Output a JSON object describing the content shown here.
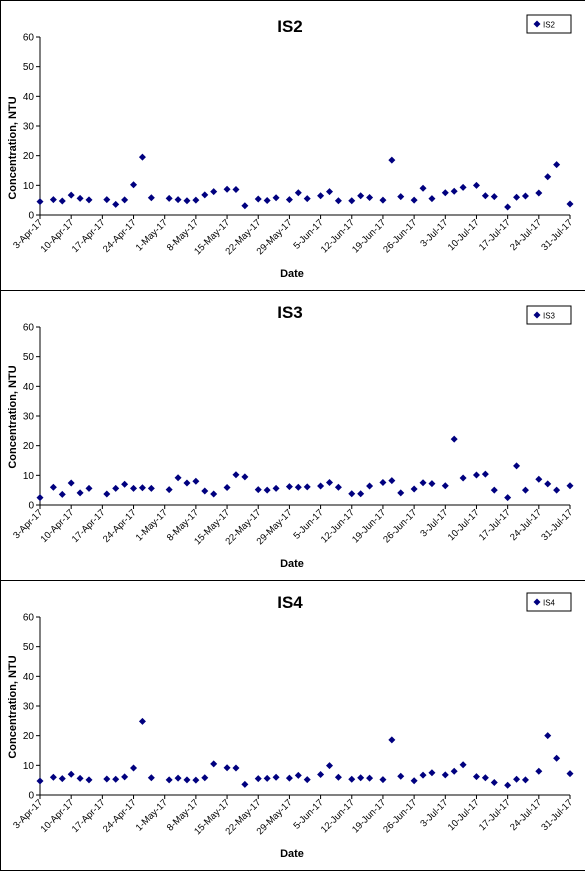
{
  "colors": {
    "series": "#00007F",
    "axis": "#000000",
    "background": "#ffffff"
  },
  "chart_data": [
    {
      "type": "scatter",
      "title": "IS2",
      "xlabel": "Date",
      "ylabel": "Concentration, NTU",
      "ylim": [
        0,
        60
      ],
      "yticks": [
        "0",
        "10",
        "20",
        "30",
        "40",
        "50",
        "60"
      ],
      "xlim": [
        "2017-04-03",
        "2017-07-31"
      ],
      "xticks": [
        "3-Apr-17",
        "10-Apr-17",
        "17-Apr-17",
        "24-Apr-17",
        "1-May-17",
        "8-May-17",
        "15-May-17",
        "22-May-17",
        "29-May-17",
        "5-Jun-17",
        "12-Jun-17",
        "19-Jun-17",
        "26-Jun-17",
        "3-Jul-17",
        "10-Jul-17",
        "17-Jul-17",
        "24-Jul-17",
        "31-Jul-17"
      ],
      "grid": false,
      "legend_position": "top-right",
      "series": [
        {
          "name": "IS2",
          "points": [
            [
              "2017-04-03",
              4.5
            ],
            [
              "2017-04-06",
              5.2
            ],
            [
              "2017-04-08",
              4.7
            ],
            [
              "2017-04-10",
              6.7
            ],
            [
              "2017-04-12",
              5.6
            ],
            [
              "2017-04-14",
              5.1
            ],
            [
              "2017-04-18",
              5.2
            ],
            [
              "2017-04-20",
              3.6
            ],
            [
              "2017-04-22",
              5.1
            ],
            [
              "2017-04-24",
              10.2
            ],
            [
              "2017-04-26",
              19.5
            ],
            [
              "2017-04-28",
              5.8
            ],
            [
              "2017-05-02",
              5.6
            ],
            [
              "2017-05-04",
              5.2
            ],
            [
              "2017-05-06",
              4.8
            ],
            [
              "2017-05-08",
              5.0
            ],
            [
              "2017-05-10",
              6.8
            ],
            [
              "2017-05-12",
              7.9
            ],
            [
              "2017-05-15",
              8.7
            ],
            [
              "2017-05-17",
              8.6
            ],
            [
              "2017-05-19",
              3.1
            ],
            [
              "2017-05-22",
              5.4
            ],
            [
              "2017-05-24",
              4.9
            ],
            [
              "2017-05-26",
              5.8
            ],
            [
              "2017-05-29",
              5.2
            ],
            [
              "2017-05-31",
              7.5
            ],
            [
              "2017-06-02",
              5.5
            ],
            [
              "2017-06-05",
              6.5
            ],
            [
              "2017-06-07",
              7.9
            ],
            [
              "2017-06-09",
              4.8
            ],
            [
              "2017-06-12",
              4.8
            ],
            [
              "2017-06-14",
              6.5
            ],
            [
              "2017-06-16",
              5.9
            ],
            [
              "2017-06-19",
              5.0
            ],
            [
              "2017-06-21",
              18.5
            ],
            [
              "2017-06-23",
              6.2
            ],
            [
              "2017-06-26",
              5.0
            ],
            [
              "2017-06-28",
              9.0
            ],
            [
              "2017-06-30",
              5.5
            ],
            [
              "2017-07-03",
              7.5
            ],
            [
              "2017-07-05",
              8.0
            ],
            [
              "2017-07-07",
              9.3
            ],
            [
              "2017-07-10",
              10.0
            ],
            [
              "2017-07-12",
              6.5
            ],
            [
              "2017-07-14",
              6.2
            ],
            [
              "2017-07-17",
              2.7
            ],
            [
              "2017-07-19",
              6.0
            ],
            [
              "2017-07-21",
              6.4
            ],
            [
              "2017-07-24",
              7.4
            ],
            [
              "2017-07-26",
              12.9
            ],
            [
              "2017-07-28",
              17.0
            ],
            [
              "2017-07-31",
              3.7
            ]
          ]
        }
      ]
    },
    {
      "type": "scatter",
      "title": "IS3",
      "xlabel": "Date",
      "ylabel": "Concentration, NTU",
      "ylim": [
        0,
        60
      ],
      "yticks": [
        "0",
        "10",
        "20",
        "30",
        "40",
        "50",
        "60"
      ],
      "xlim": [
        "2017-04-03",
        "2017-07-31"
      ],
      "xticks": [
        "3-Apr-17",
        "10-Apr-17",
        "17-Apr-17",
        "24-Apr-17",
        "1-May-17",
        "8-May-17",
        "15-May-17",
        "22-May-17",
        "29-May-17",
        "5-Jun-17",
        "12-Jun-17",
        "19-Jun-17",
        "26-Jun-17",
        "3-Jul-17",
        "10-Jul-17",
        "17-Jul-17",
        "24-Jul-17",
        "31-Jul-17"
      ],
      "grid": false,
      "legend_position": "top-right",
      "series": [
        {
          "name": "IS3",
          "points": [
            [
              "2017-04-03",
              2.5
            ],
            [
              "2017-04-06",
              6.0
            ],
            [
              "2017-04-08",
              3.6
            ],
            [
              "2017-04-10",
              7.4
            ],
            [
              "2017-04-12",
              4.1
            ],
            [
              "2017-04-14",
              5.6
            ],
            [
              "2017-04-18",
              3.7
            ],
            [
              "2017-04-20",
              5.6
            ],
            [
              "2017-04-22",
              7.0
            ],
            [
              "2017-04-24",
              5.6
            ],
            [
              "2017-04-26",
              5.8
            ],
            [
              "2017-04-28",
              5.6
            ],
            [
              "2017-05-02",
              5.2
            ],
            [
              "2017-05-04",
              9.2
            ],
            [
              "2017-05-06",
              7.4
            ],
            [
              "2017-05-08",
              8.0
            ],
            [
              "2017-05-10",
              4.7
            ],
            [
              "2017-05-12",
              3.7
            ],
            [
              "2017-05-15",
              5.9
            ],
            [
              "2017-05-17",
              10.2
            ],
            [
              "2017-05-19",
              9.5
            ],
            [
              "2017-05-22",
              5.2
            ],
            [
              "2017-05-24",
              5.0
            ],
            [
              "2017-05-26",
              5.6
            ],
            [
              "2017-05-29",
              6.2
            ],
            [
              "2017-05-31",
              6.0
            ],
            [
              "2017-06-02",
              6.1
            ],
            [
              "2017-06-05",
              6.4
            ],
            [
              "2017-06-07",
              7.6
            ],
            [
              "2017-06-09",
              6.0
            ],
            [
              "2017-06-12",
              3.8
            ],
            [
              "2017-06-14",
              3.8
            ],
            [
              "2017-06-16",
              6.4
            ],
            [
              "2017-06-19",
              7.6
            ],
            [
              "2017-06-21",
              8.2
            ],
            [
              "2017-06-23",
              4.1
            ],
            [
              "2017-06-26",
              5.4
            ],
            [
              "2017-06-28",
              7.5
            ],
            [
              "2017-06-30",
              7.2
            ],
            [
              "2017-07-03",
              6.5
            ],
            [
              "2017-07-05",
              22.2
            ],
            [
              "2017-07-07",
              9.1
            ],
            [
              "2017-07-10",
              10.1
            ],
            [
              "2017-07-12",
              10.4
            ],
            [
              "2017-07-14",
              5.0
            ],
            [
              "2017-07-17",
              2.5
            ],
            [
              "2017-07-19",
              13.2
            ],
            [
              "2017-07-21",
              5.0
            ],
            [
              "2017-07-24",
              8.7
            ],
            [
              "2017-07-26",
              7.1
            ],
            [
              "2017-07-28",
              5.0
            ],
            [
              "2017-07-31",
              6.5
            ]
          ]
        }
      ]
    },
    {
      "type": "scatter",
      "title": "IS4",
      "xlabel": "Date",
      "ylabel": "Concentration, NTU",
      "ylim": [
        0,
        60
      ],
      "yticks": [
        "0",
        "10",
        "20",
        "30",
        "40",
        "50",
        "60"
      ],
      "xlim": [
        "2017-04-03",
        "2017-07-31"
      ],
      "xticks": [
        "3-Apr-17",
        "10-Apr-17",
        "17-Apr-17",
        "24-Apr-17",
        "1-May-17",
        "8-May-17",
        "15-May-17",
        "22-May-17",
        "29-May-17",
        "5-Jun-17",
        "12-Jun-17",
        "19-Jun-17",
        "26-Jun-17",
        "3-Jul-17",
        "10-Jul-17",
        "17-Jul-17",
        "24-Jul-17",
        "31-Jul-17"
      ],
      "grid": false,
      "legend_position": "top-right",
      "series": [
        {
          "name": "IS4",
          "points": [
            [
              "2017-04-03",
              4.7
            ],
            [
              "2017-04-06",
              6.0
            ],
            [
              "2017-04-08",
              5.5
            ],
            [
              "2017-04-10",
              7.0
            ],
            [
              "2017-04-12",
              5.6
            ],
            [
              "2017-04-14",
              5.1
            ],
            [
              "2017-04-18",
              5.4
            ],
            [
              "2017-04-20",
              5.3
            ],
            [
              "2017-04-22",
              6.1
            ],
            [
              "2017-04-24",
              9.1
            ],
            [
              "2017-04-26",
              24.8
            ],
            [
              "2017-04-28",
              5.8
            ],
            [
              "2017-05-02",
              5.1
            ],
            [
              "2017-05-04",
              5.7
            ],
            [
              "2017-05-06",
              5.1
            ],
            [
              "2017-05-08",
              5.0
            ],
            [
              "2017-05-10",
              5.8
            ],
            [
              "2017-05-12",
              10.5
            ],
            [
              "2017-05-15",
              9.2
            ],
            [
              "2017-05-17",
              9.1
            ],
            [
              "2017-05-19",
              3.6
            ],
            [
              "2017-05-22",
              5.5
            ],
            [
              "2017-05-24",
              5.6
            ],
            [
              "2017-05-26",
              6.0
            ],
            [
              "2017-05-29",
              5.7
            ],
            [
              "2017-05-31",
              6.6
            ],
            [
              "2017-06-02",
              5.2
            ],
            [
              "2017-06-05",
              6.9
            ],
            [
              "2017-06-07",
              9.9
            ],
            [
              "2017-06-09",
              6.0
            ],
            [
              "2017-06-12",
              5.3
            ],
            [
              "2017-06-14",
              5.8
            ],
            [
              "2017-06-16",
              5.7
            ],
            [
              "2017-06-19",
              5.2
            ],
            [
              "2017-06-21",
              18.6
            ],
            [
              "2017-06-23",
              6.3
            ],
            [
              "2017-06-26",
              4.8
            ],
            [
              "2017-06-28",
              6.7
            ],
            [
              "2017-06-30",
              7.5
            ],
            [
              "2017-07-03",
              6.8
            ],
            [
              "2017-07-05",
              8.0
            ],
            [
              "2017-07-07",
              10.2
            ],
            [
              "2017-07-10",
              6.2
            ],
            [
              "2017-07-12",
              5.8
            ],
            [
              "2017-07-14",
              4.2
            ],
            [
              "2017-07-17",
              3.3
            ],
            [
              "2017-07-19",
              5.3
            ],
            [
              "2017-07-21",
              5.1
            ],
            [
              "2017-07-24",
              8.0
            ],
            [
              "2017-07-26",
              20.0
            ],
            [
              "2017-07-28",
              12.4
            ],
            [
              "2017-07-31",
              7.2
            ]
          ]
        }
      ]
    }
  ]
}
